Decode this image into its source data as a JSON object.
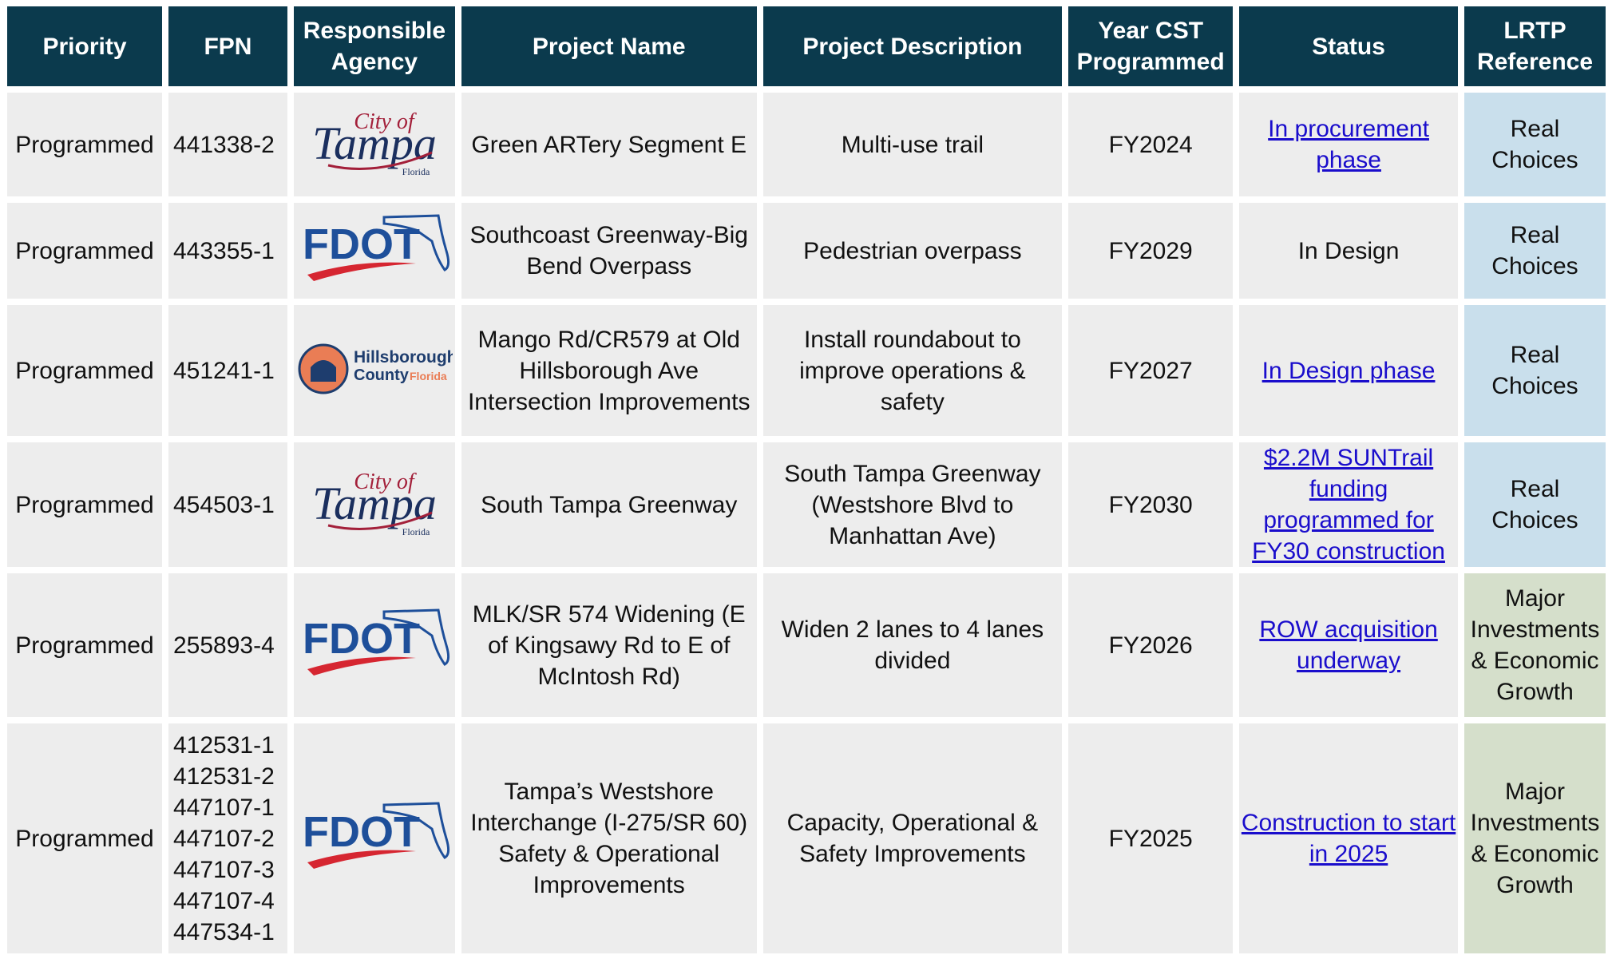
{
  "header": [
    "Priority",
    "FPN",
    "Responsible Agency",
    "Project Name",
    "Project Description",
    "Year CST Programmed",
    "Status",
    "LRTP Reference"
  ],
  "rows": [
    {
      "priority": "Programmed",
      "fpn": [
        "441338-2"
      ],
      "agency": {
        "logo": "tampa",
        "lines": [
          "City of",
          "Tampa",
          "Florida"
        ]
      },
      "name": "Green ARTery Segment E",
      "description": "Multi-use trail",
      "year": "FY2024",
      "status": {
        "text": "In procurement phase",
        "link": true
      },
      "lrtp": {
        "text": "Real Choices",
        "color": "#c9dfec"
      }
    },
    {
      "priority": "Programmed",
      "fpn": [
        "443355-1"
      ],
      "agency": {
        "logo": "fdot",
        "lines": [
          "FDOT"
        ]
      },
      "name": "Southcoast Greenway-Big Bend Overpass",
      "description": "Pedestrian overpass",
      "year": "FY2029",
      "status": {
        "text": "In Design",
        "link": false
      },
      "lrtp": {
        "text": "Real Choices",
        "color": "#c9dfec"
      }
    },
    {
      "priority": "Programmed",
      "fpn": [
        "451241-1"
      ],
      "agency": {
        "logo": "hillsborough",
        "lines": [
          "Hillsborough",
          "County",
          "Florida"
        ]
      },
      "name": "Mango Rd/CR579 at Old Hillsborough Ave Intersection Improvements",
      "description": "Install roundabout to improve operations & safety",
      "year": "FY2027",
      "status": {
        "text": "In Design phase",
        "link": true
      },
      "lrtp": {
        "text": "Real Choices",
        "color": "#c9dfec"
      }
    },
    {
      "priority": "Programmed",
      "fpn": [
        "454503-1"
      ],
      "agency": {
        "logo": "tampa",
        "lines": [
          "City of",
          "Tampa",
          "Florida"
        ]
      },
      "name": "South Tampa Greenway",
      "description": "South Tampa Greenway (Westshore Blvd to Manhattan Ave)",
      "year": "FY2030",
      "status": {
        "text": "$2.2M SUNTrail funding programmed for FY30 construction",
        "link": true
      },
      "lrtp": {
        "text": "Real Choices",
        "color": "#c9dfec"
      }
    },
    {
      "priority": "Programmed",
      "fpn": [
        "255893-4"
      ],
      "agency": {
        "logo": "fdot",
        "lines": [
          "FDOT"
        ]
      },
      "name": "MLK/SR 574 Widening (E of Kingsawy Rd to E of McIntosh Rd)",
      "description": "Widen 2 lanes to 4 lanes divided",
      "year": "FY2026",
      "status": {
        "text": "ROW acquisition underway",
        "link": true
      },
      "lrtp": {
        "text": "Major Investments & Economic Growth",
        "color": "#d5dfcb"
      }
    },
    {
      "priority": "Programmed",
      "fpn": [
        "412531-1",
        "412531-2",
        "447107-1",
        "447107-2",
        "447107-3",
        "447107-4",
        "447534-1"
      ],
      "agency": {
        "logo": "fdot",
        "lines": [
          "FDOT"
        ]
      },
      "name": "Tampa’s Westshore Interchange (I-275/SR 60) Safety & Operational Improvements",
      "description": "Capacity, Operational & Safety Improvements",
      "year": "FY2025",
      "status": {
        "text": "Construction to start in 2025",
        "link": true
      },
      "lrtp": {
        "text": "Major Investments & Economic Growth",
        "color": "#d5dfcb"
      }
    }
  ]
}
